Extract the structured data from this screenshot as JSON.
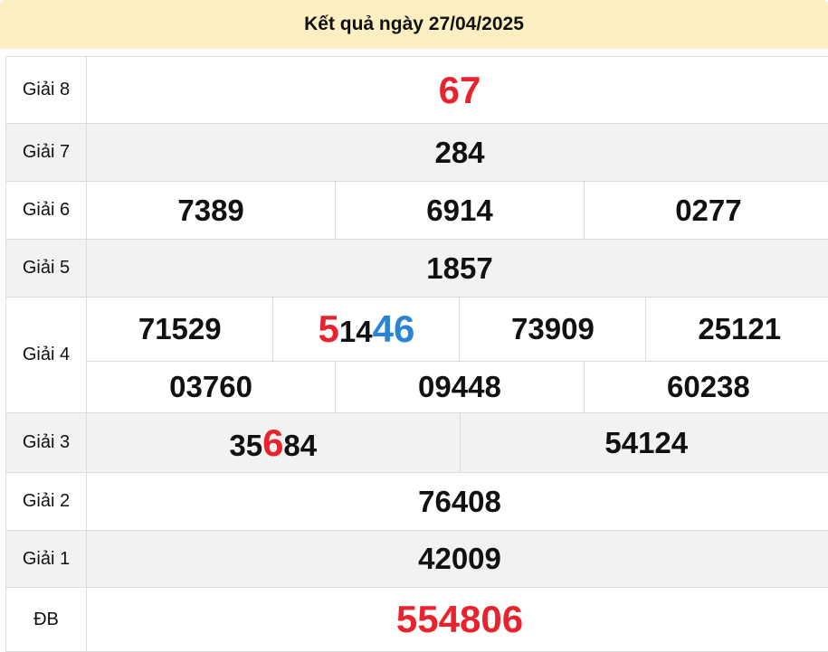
{
  "header": {
    "title": "Kết quả ngày 27/04/2025"
  },
  "colors": {
    "red": "#e8232d",
    "blue": "#2a84d6",
    "header_bg": "#fcefc1",
    "row_alt": "#f2f2f2"
  },
  "prizes": [
    {
      "label": "Giải 8",
      "numbers": [
        [
          {
            "t": "67"
          }
        ]
      ]
    },
    {
      "label": "Giải 7",
      "numbers": [
        [
          {
            "t": "284"
          }
        ]
      ]
    },
    {
      "label": "Giải 6",
      "numbers": [
        [
          {
            "t": "7389"
          }
        ],
        [
          {
            "t": "6914"
          }
        ],
        [
          {
            "t": "0277"
          }
        ]
      ]
    },
    {
      "label": "Giải 5",
      "numbers": [
        [
          {
            "t": "1857"
          }
        ]
      ]
    },
    {
      "label": "Giải 4",
      "numbers": [
        [
          {
            "t": "71529"
          }
        ],
        [
          {
            "t": "5",
            "c": "red",
            "big": true
          },
          {
            "t": "14"
          },
          {
            "t": "46",
            "c": "blue",
            "big": true
          }
        ],
        [
          {
            "t": "73909"
          }
        ],
        [
          {
            "t": "25121"
          }
        ],
        [
          {
            "t": "03760"
          }
        ],
        [
          {
            "t": "09448"
          }
        ],
        [
          {
            "t": "60238"
          }
        ]
      ]
    },
    {
      "label": "Giải 3",
      "numbers": [
        [
          {
            "t": "35"
          },
          {
            "t": "6",
            "c": "red",
            "big": true
          },
          {
            "t": "84"
          }
        ],
        [
          {
            "t": "54124"
          }
        ]
      ]
    },
    {
      "label": "Giải 2",
      "numbers": [
        [
          {
            "t": "76408"
          }
        ]
      ]
    },
    {
      "label": "Giải 1",
      "numbers": [
        [
          {
            "t": "42009"
          }
        ]
      ]
    },
    {
      "label": "ĐB",
      "numbers": [
        [
          {
            "t": "554806"
          }
        ]
      ]
    }
  ]
}
